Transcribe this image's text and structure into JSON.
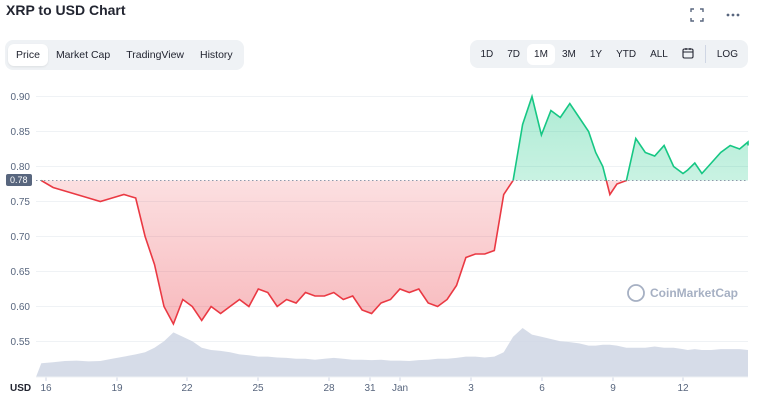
{
  "page": {
    "title": "XRP to USD Chart"
  },
  "icons": {
    "fullscreen": "fullscreen-icon",
    "more": "more-icon",
    "calendar": "calendar-icon",
    "watermark": "coinmarketcap-logo-icon"
  },
  "tabs": [
    {
      "label": "Price",
      "active": true
    },
    {
      "label": "Market Cap",
      "active": false
    },
    {
      "label": "TradingView",
      "active": false
    },
    {
      "label": "History",
      "active": false
    }
  ],
  "ranges": [
    {
      "label": "1D",
      "active": false
    },
    {
      "label": "7D",
      "active": false
    },
    {
      "label": "1M",
      "active": true
    },
    {
      "label": "3M",
      "active": false
    },
    {
      "label": "1Y",
      "active": false
    },
    {
      "label": "YTD",
      "active": false
    },
    {
      "label": "ALL",
      "active": false
    }
  ],
  "log_label": "LOG",
  "watermark": "CoinMarketCap",
  "colors": {
    "up": "#16c784",
    "down": "#ea3943",
    "grid": "#eff2f5",
    "volume": "#cfd6e4"
  },
  "chart_data": {
    "type": "line",
    "title": "XRP to USD Chart",
    "xlabel": "",
    "ylabel": "USD",
    "ylim": [
      0.52,
      0.92
    ],
    "y_ticks": [
      "0.90",
      "0.85",
      "0.80",
      "0.75",
      "0.70",
      "0.65",
      "0.60",
      "0.55"
    ],
    "x_ticks": [
      "16",
      "19",
      "22",
      "25",
      "28",
      "31",
      "Jan",
      "3",
      "6",
      "9",
      "12"
    ],
    "reference_price": 0.78,
    "reference_label": "0.78",
    "grid": true,
    "series": [
      {
        "x": [
          15.8,
          16.3,
          16.8,
          17.3,
          17.8,
          18.3,
          18.8,
          19.3,
          19.8,
          20.2,
          20.6,
          21,
          21.4,
          21.8,
          22.2,
          22.6,
          23,
          23.4,
          23.8,
          24.2,
          24.6,
          25,
          25.4,
          25.8,
          26.2,
          26.6,
          27,
          27.4,
          27.8,
          28.2,
          28.6,
          29,
          29.4,
          29.8,
          30.2,
          30.6,
          31,
          31.4,
          31.8,
          32.2,
          32.6,
          33,
          33.4,
          33.8,
          34.2,
          34.6,
          35,
          35.4,
          35.8,
          36.2,
          36.6,
          37,
          37.4,
          37.8,
          38.2,
          38.6,
          39,
          39.3,
          39.6,
          39.9,
          40.2,
          40.6,
          41,
          41.4,
          41.8,
          42.2,
          42.6,
          43,
          43.2,
          43.5,
          43.8,
          44.2,
          44.6,
          45,
          45.4,
          45.8,
          46.2,
          46.6,
          47,
          47.4,
          47.8
        ],
        "values": [
          0.78,
          0.77,
          0.765,
          0.76,
          0.755,
          0.75,
          0.755,
          0.76,
          0.755,
          0.7,
          0.66,
          0.6,
          0.575,
          0.61,
          0.6,
          0.58,
          0.6,
          0.59,
          0.6,
          0.61,
          0.6,
          0.625,
          0.62,
          0.6,
          0.61,
          0.605,
          0.62,
          0.615,
          0.615,
          0.62,
          0.61,
          0.615,
          0.595,
          0.59,
          0.605,
          0.61,
          0.625,
          0.62,
          0.625,
          0.605,
          0.6,
          0.61,
          0.63,
          0.67,
          0.675,
          0.675,
          0.68,
          0.76,
          0.78,
          0.86,
          0.9,
          0.845,
          0.88,
          0.87,
          0.89,
          0.87,
          0.85,
          0.82,
          0.8,
          0.76,
          0.775,
          0.78,
          0.84,
          0.82,
          0.815,
          0.83,
          0.8,
          0.79,
          0.795,
          0.805,
          0.79,
          0.805,
          0.82,
          0.83,
          0.825,
          0.835,
          0.83,
          0.835,
          0.83,
          0.835,
          0.83
        ],
        "volume": [
          0.2,
          0.22,
          0.25,
          0.26,
          0.24,
          0.25,
          0.3,
          0.35,
          0.4,
          0.45,
          0.55,
          0.7,
          0.9,
          0.8,
          0.7,
          0.55,
          0.5,
          0.48,
          0.45,
          0.4,
          0.38,
          0.35,
          0.35,
          0.33,
          0.32,
          0.3,
          0.3,
          0.28,
          0.3,
          0.32,
          0.3,
          0.28,
          0.28,
          0.27,
          0.28,
          0.26,
          0.26,
          0.25,
          0.27,
          0.28,
          0.3,
          0.3,
          0.32,
          0.35,
          0.35,
          0.33,
          0.35,
          0.45,
          0.8,
          1.0,
          0.85,
          0.8,
          0.75,
          0.7,
          0.68,
          0.65,
          0.6,
          0.6,
          0.62,
          0.62,
          0.6,
          0.55,
          0.55,
          0.55,
          0.58,
          0.55,
          0.55,
          0.52,
          0.5,
          0.52,
          0.5,
          0.5,
          0.52,
          0.52,
          0.52,
          0.5,
          0.5,
          0.5,
          0.5,
          0.5,
          0.5
        ]
      }
    ]
  }
}
